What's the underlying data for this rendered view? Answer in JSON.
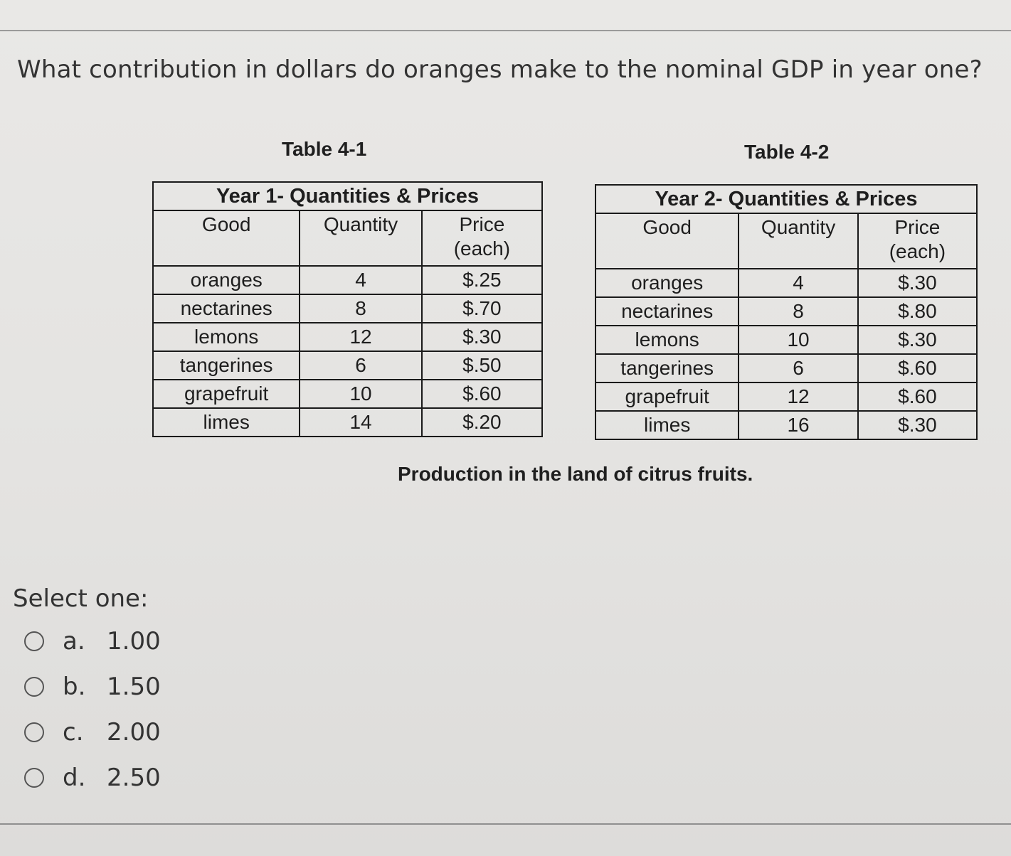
{
  "question": "What contribution in dollars do oranges make to the nominal GDP in year one?",
  "table1": {
    "caption": "Table 4-1",
    "title": "Year 1- Quantities & Prices",
    "headers": [
      "Good",
      "Quantity",
      "Price\n(each)"
    ],
    "rows": [
      [
        "oranges",
        "4",
        "$.25"
      ],
      [
        "nectarines",
        "8",
        "$.70"
      ],
      [
        "lemons",
        "12",
        "$.30"
      ],
      [
        "tangerines",
        "6",
        "$.50"
      ],
      [
        "grapefruit",
        "10",
        "$.60"
      ],
      [
        "limes",
        "14",
        "$.20"
      ]
    ]
  },
  "table2": {
    "caption": "Table 4-2",
    "title": "Year 2- Quantities & Prices",
    "headers": [
      "Good",
      "Quantity",
      "Price\n(each)"
    ],
    "rows": [
      [
        "oranges",
        "4",
        "$.30"
      ],
      [
        "nectarines",
        "8",
        "$.80"
      ],
      [
        "lemons",
        "10",
        "$.30"
      ],
      [
        "tangerines",
        "6",
        "$.60"
      ],
      [
        "grapefruit",
        "12",
        "$.60"
      ],
      [
        "limes",
        "16",
        "$.30"
      ]
    ]
  },
  "production_caption": "Production in the land of citrus fruits.",
  "select_label": "Select one:",
  "options": [
    {
      "letter": "a.",
      "value": "1.00"
    },
    {
      "letter": "b.",
      "value": "1.50"
    },
    {
      "letter": "c.",
      "value": "2.00"
    },
    {
      "letter": "d.",
      "value": "2.50"
    }
  ]
}
